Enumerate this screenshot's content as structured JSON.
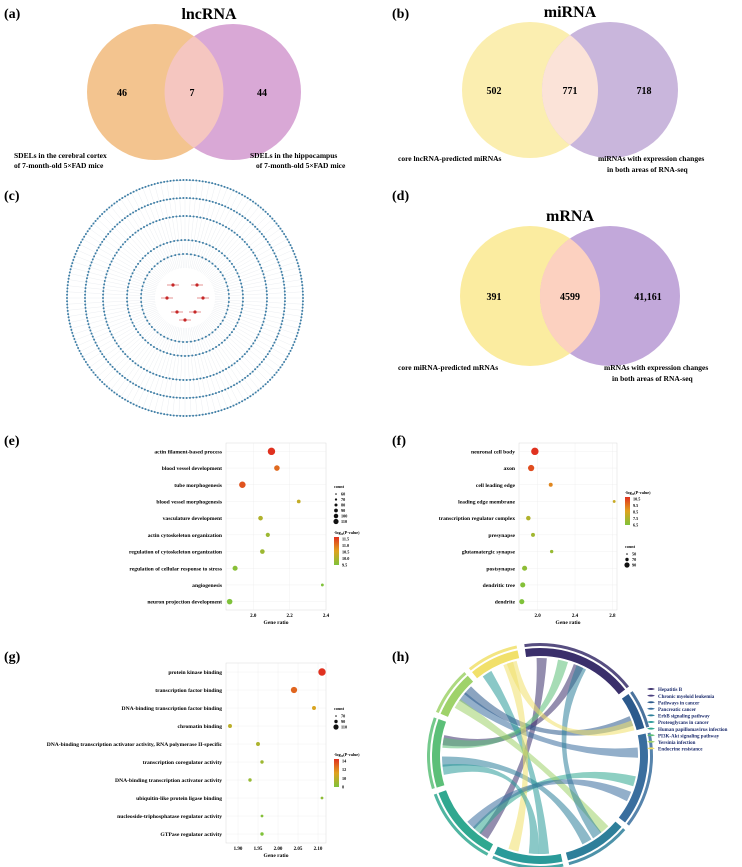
{
  "panels": {
    "a": {
      "label": "(a)",
      "title": "lncRNA",
      "left_only": "46",
      "overlap": "7",
      "right_only": "44",
      "left_set": [
        "SDELs in the cerebral cortex",
        "of 7-month-old 5×FAD mice"
      ],
      "right_set": [
        "SDELs in the hippocampus",
        "of 7-month-old 5×FAD mice"
      ],
      "colors": {
        "left": "#f3c48f",
        "right": "#d9a8d6",
        "overlap": "#f5c6c0"
      }
    },
    "b": {
      "label": "(b)",
      "title": "miRNA",
      "left_only": "502",
      "overlap": "771",
      "right_only": "718",
      "left_set": [
        "core lncRNA-predicted miRNAs"
      ],
      "right_set": [
        "miRNAs with expression changes",
        "in both areas of RNA-seq"
      ],
      "colors": {
        "left": "#fbeeb0",
        "right": "#c9b6dc",
        "overlap": "#fbe3d8"
      }
    },
    "c": {
      "label": "(c)"
    },
    "d": {
      "label": "(d)",
      "title": "mRNA",
      "left_only": "391",
      "overlap": "4599",
      "right_only": "41,161",
      "left_set": [
        "core miRNA-predicted mRNAs"
      ],
      "right_set": [
        "mRNAs with expression changes",
        "in both areas of RNA-seq"
      ],
      "colors": {
        "left": "#fbeca0",
        "right": "#c2a8da",
        "overlap": "#fcd1c0"
      }
    },
    "e": {
      "label": "(e)",
      "xlabel": "Gene ratio",
      "count_title": "count",
      "count_levels": [
        "60",
        "70",
        "80",
        "90",
        "100",
        "110"
      ],
      "pval_title": "-log₁₀(P-value)",
      "pval_levels": [
        "11.5",
        "11.0",
        "10.5",
        "10.0",
        "9.5"
      ]
    },
    "f": {
      "label": "(f)",
      "xlabel": "Gene ratio",
      "count_title": "count",
      "count_levels": [
        "50",
        "70",
        "90"
      ],
      "pval_title": "-log₁₀(P-value)",
      "pval_levels": [
        "10.5",
        "9.5",
        "8.5",
        "7.5",
        "6.5"
      ]
    },
    "g": {
      "label": "(g)",
      "xlabel": "Gene ratio",
      "count_title": "count",
      "count_levels": [
        "70",
        "90",
        "110"
      ],
      "pval_title": "-log₁₀(P-value)",
      "pval_levels": [
        "14",
        "12",
        "10",
        "8"
      ]
    },
    "h": {
      "label": "(h)",
      "pathways": [
        {
          "name": "Hepatitis B",
          "color": "#3a2f6b"
        },
        {
          "name": "Chronic myeloid leukemia",
          "color": "#4a3f7f"
        },
        {
          "name": "Pathways in cancer",
          "color": "#2c5a8c"
        },
        {
          "name": "Pancreatic cancer",
          "color": "#3a6e9e"
        },
        {
          "name": "ErbB signaling pathway",
          "color": "#2e7f9a"
        },
        {
          "name": "Proteoglycans in cancer",
          "color": "#2a9a99"
        },
        {
          "name": "Human papillomavirus infection",
          "color": "#30a890"
        },
        {
          "name": "PI3K-Akt signaling pathway",
          "color": "#5cbf78"
        },
        {
          "name": "Yersinia infection",
          "color": "#9fd26a"
        },
        {
          "name": "Endocrine resistance",
          "color": "#f1e06a"
        }
      ]
    }
  },
  "chart_data": [
    {
      "type": "scatter",
      "panel": "e",
      "xlabel": "Gene ratio",
      "xlim": [
        1.85,
        2.4
      ],
      "xticks": [
        "2.0",
        "2.2",
        "2.4"
      ],
      "terms": [
        "actin filament-based process",
        "blood vessel development",
        "tube morphogenesis",
        "blood vessel morphogenesis",
        "vasculature development",
        "actin cytoskeleton organization",
        "regulation of cytoskeleton organization",
        "regulation of cellular response to stress",
        "angiogenesis",
        "neuron projection development"
      ],
      "x": [
        2.1,
        2.13,
        1.94,
        2.25,
        2.04,
        2.08,
        2.05,
        1.9,
        2.38,
        1.87
      ],
      "count": [
        110,
        90,
        100,
        70,
        80,
        75,
        80,
        85,
        60,
        90
      ],
      "neg_log10_p": [
        11.5,
        11.0,
        11.2,
        10.2,
        10.0,
        9.8,
        9.8,
        9.6,
        9.5,
        9.5
      ]
    },
    {
      "type": "scatter",
      "panel": "f",
      "xlabel": "Gene ratio",
      "xlim": [
        1.8,
        2.85
      ],
      "xticks": [
        "2.0",
        "2.4",
        "2.8"
      ],
      "terms": [
        "neuronal cell body",
        "axon",
        "cell leading edge",
        "leading edge membrane",
        "transcription regulator complex",
        "presynapse",
        "glutamatergic synapse",
        "postsynapse",
        "dendritic tree",
        "dendrite"
      ],
      "x": [
        1.97,
        1.93,
        2.14,
        2.82,
        1.9,
        1.95,
        2.15,
        1.86,
        1.84,
        1.83
      ],
      "count": [
        90,
        80,
        60,
        50,
        65,
        60,
        55,
        70,
        70,
        70
      ],
      "neg_log10_p": [
        10.5,
        10.0,
        9.0,
        8.0,
        7.5,
        7.2,
        7.0,
        6.8,
        6.6,
        6.5
      ]
    },
    {
      "type": "scatter",
      "panel": "g",
      "xlabel": "Gene ratio",
      "xlim": [
        1.87,
        2.12
      ],
      "xticks": [
        "1.90",
        "1.95",
        "2.00",
        "2.05",
        "2.10"
      ],
      "terms": [
        "protein kinase binding",
        "transcription factor binding",
        "DNA-binding transcription factor binding",
        "chromatin binding",
        "DNA-binding transcription activator activity, RNA polymerase II-specific",
        "transcription coregulator activity",
        "DNA-binding transcription activator activity",
        "ubiquitin-like protein ligase binding",
        "nucleoside-triphosphatase regulator activity",
        "GTPase regulator activity"
      ],
      "x": [
        2.11,
        2.04,
        2.09,
        1.88,
        1.95,
        1.96,
        1.93,
        2.11,
        1.96,
        1.96
      ],
      "count": [
        110,
        100,
        80,
        80,
        80,
        75,
        75,
        70,
        70,
        75
      ],
      "neg_log10_p": [
        14.5,
        13.0,
        11.0,
        10.0,
        9.5,
        9.0,
        8.8,
        8.5,
        8.2,
        8.0
      ]
    }
  ]
}
